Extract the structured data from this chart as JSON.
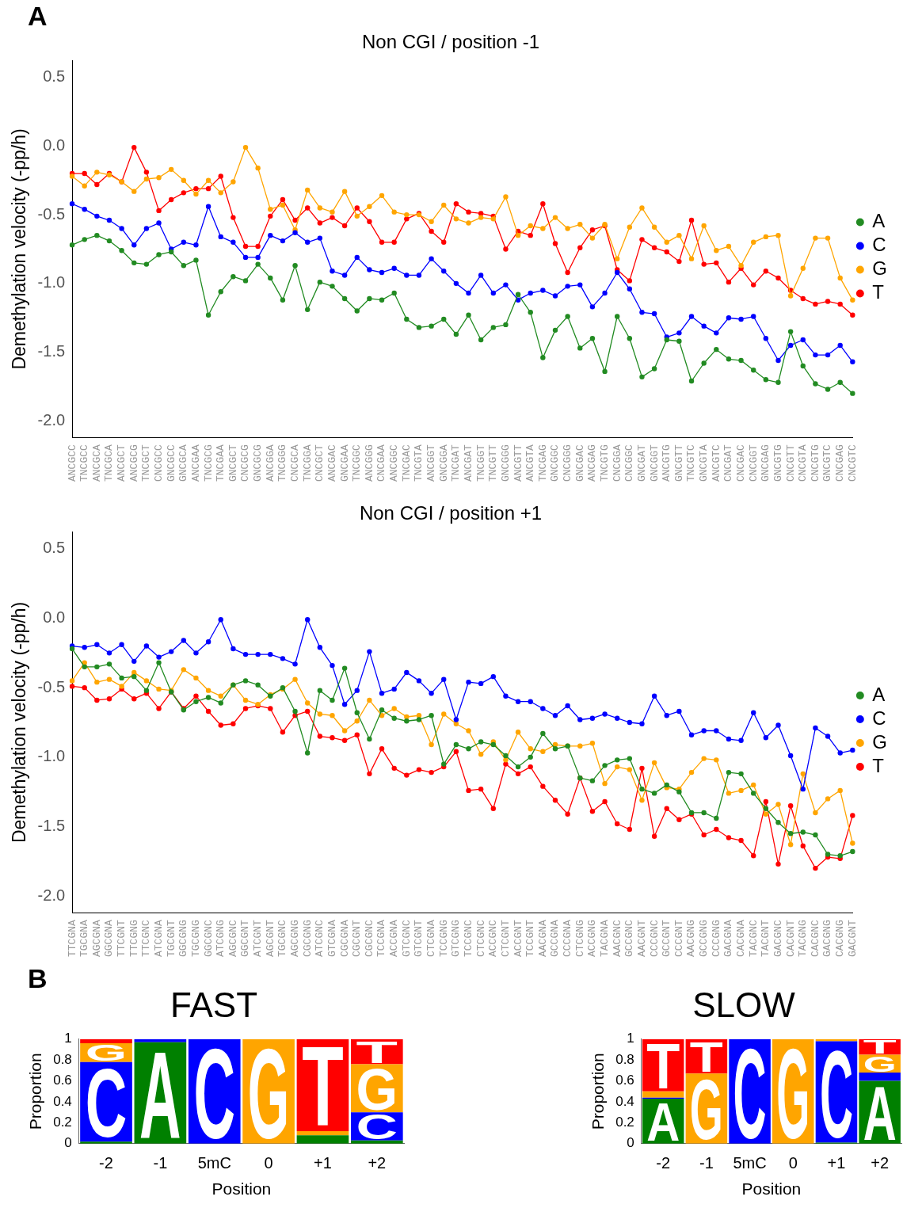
{
  "chart_data": [
    {
      "type": "line",
      "title": "Non CGI / position -1",
      "ylabel": "Demethylation velocity (-pp/h)",
      "annotations": [
        "A"
      ],
      "categories": [
        "ANCGCC",
        "TNCGCC",
        "ANCGCA",
        "TNCGCA",
        "ANCGCT",
        "ANCGCG",
        "TNCGCT",
        "CNCGCC",
        "GNCGCC",
        "GNCGCA",
        "ANCGAA",
        "TNCGCG",
        "TNCGAA",
        "GNCGCT",
        "CNCGCG",
        "GNCGCG",
        "ANCGGA",
        "TNCGGG",
        "CNCGCA",
        "TNCGGA",
        "CNCGCT",
        "ANCGAC",
        "GNCGAA",
        "TNCGGC",
        "ANCGGG",
        "CNCGAA",
        "ANCGGC",
        "TNCGAC",
        "TNCGTA",
        "ANCGGT",
        "GNCGGA",
        "TNCGAT",
        "ANCGAT",
        "TNCGGT",
        "TNCGTT",
        "GNCGGG",
        "ANCGTT",
        "ANCGTA",
        "TNCGAG",
        "GNCGGC",
        "CNCGGG",
        "GNCGAC",
        "ANCGAG",
        "TNCGTG",
        "CNCGGA",
        "CNCGGC",
        "GNCGAT",
        "GNCGGT",
        "ANCGTG",
        "GNCGTT",
        "TNCGTC",
        "GNCGTA",
        "ANCGTC",
        "CNCGAT",
        "CNCGAC",
        "CNCGGT",
        "GNCGAG",
        "GNCGTG",
        "CNCGTT",
        "CNCGTA",
        "CNCGTG",
        "GNCGTC",
        "CNCGAG",
        "CNCGTC"
      ],
      "series": [
        {
          "name": "A",
          "color": "#228b22",
          "values": [
            -0.72,
            -0.68,
            -0.65,
            -0.69,
            -0.76,
            -0.85,
            -0.86,
            -0.79,
            -0.77,
            -0.87,
            -0.83,
            -1.23,
            -1.06,
            -0.95,
            -0.98,
            -0.86,
            -0.96,
            -1.12,
            -0.87,
            -1.19,
            -0.99,
            -1.02,
            -1.11,
            -1.2,
            -1.11,
            -1.12,
            -1.07,
            -1.26,
            -1.32,
            -1.31,
            -1.26,
            -1.37,
            -1.23,
            -1.41,
            -1.32,
            -1.3,
            -1.08,
            -1.21,
            -1.54,
            -1.34,
            -1.24,
            -1.47,
            -1.4,
            -1.64,
            -1.24,
            -1.4,
            -1.68,
            -1.62,
            -1.41,
            -1.42,
            -1.71,
            -1.58,
            -1.48,
            -1.55,
            -1.56,
            -1.63,
            -1.7,
            -1.72,
            -1.35,
            -1.6,
            -1.73,
            -1.77,
            -1.72,
            -1.8
          ]
        },
        {
          "name": "C",
          "color": "#0000ff",
          "values": [
            -0.42,
            -0.46,
            -0.51,
            -0.54,
            -0.6,
            -0.72,
            -0.6,
            -0.56,
            -0.75,
            -0.7,
            -0.72,
            -0.44,
            -0.66,
            -0.7,
            -0.81,
            -0.81,
            -0.65,
            -0.69,
            -0.63,
            -0.7,
            -0.67,
            -0.91,
            -0.94,
            -0.81,
            -0.9,
            -0.92,
            -0.89,
            -0.94,
            -0.94,
            -0.82,
            -0.91,
            -1.0,
            -1.07,
            -0.94,
            -1.07,
            -1.01,
            -1.12,
            -1.07,
            -1.05,
            -1.09,
            -1.02,
            -1.01,
            -1.17,
            -1.07,
            -0.92,
            -1.04,
            -1.21,
            -1.22,
            -1.39,
            -1.36,
            -1.24,
            -1.31,
            -1.36,
            -1.25,
            -1.26,
            -1.24,
            -1.4,
            -1.56,
            -1.45,
            -1.41,
            -1.52,
            -1.52,
            -1.45,
            -1.57
          ]
        },
        {
          "name": "G",
          "color": "#ffa500",
          "values": [
            -0.22,
            -0.29,
            -0.19,
            -0.21,
            -0.26,
            -0.33,
            -0.24,
            -0.23,
            -0.17,
            -0.25,
            -0.35,
            -0.25,
            -0.34,
            -0.26,
            -0.01,
            -0.16,
            -0.46,
            -0.43,
            -0.61,
            -0.32,
            -0.45,
            -0.48,
            -0.33,
            -0.51,
            -0.44,
            -0.36,
            -0.48,
            -0.5,
            -0.5,
            -0.55,
            -0.43,
            -0.53,
            -0.56,
            -0.52,
            -0.53,
            -0.37,
            -0.65,
            -0.58,
            -0.6,
            -0.52,
            -0.6,
            -0.57,
            -0.67,
            -0.57,
            -0.82,
            -0.59,
            -0.45,
            -0.59,
            -0.7,
            -0.65,
            -0.82,
            -0.58,
            -0.76,
            -0.73,
            -0.87,
            -0.7,
            -0.66,
            -0.65,
            -1.09,
            -0.89,
            -0.67,
            -0.67,
            -0.96,
            -1.12
          ]
        },
        {
          "name": "T",
          "color": "#ff0000",
          "values": [
            -0.2,
            -0.2,
            -0.28,
            -0.2,
            -0.26,
            -0.01,
            -0.19,
            -0.47,
            -0.39,
            -0.34,
            -0.31,
            -0.31,
            -0.22,
            -0.52,
            -0.73,
            -0.73,
            -0.51,
            -0.39,
            -0.54,
            -0.45,
            -0.56,
            -0.52,
            -0.58,
            -0.45,
            -0.55,
            -0.7,
            -0.7,
            -0.53,
            -0.49,
            -0.62,
            -0.7,
            -0.42,
            -0.48,
            -0.49,
            -0.51,
            -0.75,
            -0.62,
            -0.65,
            -0.42,
            -0.71,
            -0.92,
            -0.74,
            -0.61,
            -0.58,
            -0.9,
            -0.98,
            -0.68,
            -0.74,
            -0.77,
            -0.84,
            -0.54,
            -0.86,
            -0.85,
            -0.99,
            -0.89,
            -1.01,
            -0.91,
            -0.96,
            -1.05,
            -1.11,
            -1.15,
            -1.13,
            -1.15,
            -1.23
          ]
        }
      ],
      "ylim": [
        -2.12,
        0.62
      ],
      "yticks": [
        0.5,
        {
          "value": 0,
          "label": "0.0"
        },
        -0.5,
        {
          "value": -1,
          "label": "-1.0"
        },
        -1.5,
        {
          "value": -2,
          "label": "-2.0"
        }
      ],
      "grid": false,
      "legend": "right",
      "marker": "circle",
      "line_style": "solid"
    },
    {
      "type": "line",
      "title": "Non CGI / position +1",
      "ylabel": "Demethylation velocity (-pp/h)",
      "categories": [
        "TTCGNA",
        "TGCGNA",
        "AGCGNA",
        "GGCGNA",
        "TTCGNT",
        "TTCGNG",
        "TTCGNC",
        "ATCGNA",
        "TGCGNT",
        "GGCGNG",
        "TGCGNG",
        "GGCGNC",
        "ATCGNG",
        "AGCGNC",
        "GGCGNT",
        "ATCGNT",
        "AGCGNT",
        "TGCGNC",
        "AGCGNG",
        "CGCGNG",
        "ATCGNC",
        "GTCGNA",
        "CGCGNA",
        "CGCGNT",
        "CGCGNC",
        "TCCGNA",
        "ACCGNA",
        "GTCGNC",
        "GTCGNT",
        "CTCGNA",
        "TCCGNG",
        "GTCGNG",
        "TCCGNC",
        "CTCGNC",
        "ACCGNC",
        "CTCGNT",
        "ACCGNT",
        "TCCGNT",
        "AACGNA",
        "GCCGNA",
        "CCCGNA",
        "CTCGNG",
        "ACCGNG",
        "TACGNA",
        "AACGNC",
        "GCCGNC",
        "AACGNT",
        "CCCGNC",
        "GCCGNT",
        "CCCGNT",
        "AACGNG",
        "GCCGNG",
        "CCCGNG",
        "GACGNA",
        "CACGNA",
        "TACGNC",
        "TACGNT",
        "GACGNC",
        "CACGNT",
        "TACGNG",
        "CACGNC",
        "GACGNG",
        "CACGNG",
        "GACGNT"
      ],
      "series": [
        {
          "name": "A",
          "color": "#228b22",
          "values": [
            -0.22,
            -0.35,
            -0.35,
            -0.33,
            -0.43,
            -0.42,
            -0.52,
            -0.32,
            -0.53,
            -0.66,
            -0.6,
            -0.57,
            -0.61,
            -0.48,
            -0.45,
            -0.48,
            -0.56,
            -0.5,
            -0.67,
            -0.97,
            -0.52,
            -0.59,
            -0.36,
            -0.68,
            -0.87,
            -0.66,
            -0.72,
            -0.74,
            -0.73,
            -0.7,
            -1.05,
            -0.91,
            -0.94,
            -0.89,
            -0.91,
            -0.99,
            -1.07,
            -1.0,
            -0.83,
            -0.94,
            -0.92,
            -1.15,
            -1.17,
            -1.06,
            -1.02,
            -1.01,
            -1.23,
            -1.26,
            -1.2,
            -1.25,
            -1.4,
            -1.4,
            -1.44,
            -1.11,
            -1.12,
            -1.26,
            -1.37,
            -1.47,
            -1.55,
            -1.54,
            -1.56,
            -1.7,
            -1.71,
            -1.68
          ]
        },
        {
          "name": "C",
          "color": "#0000ff",
          "values": [
            -0.2,
            -0.21,
            -0.19,
            -0.25,
            -0.19,
            -0.31,
            -0.2,
            -0.28,
            -0.24,
            -0.16,
            -0.25,
            -0.17,
            -0.01,
            -0.22,
            -0.26,
            -0.26,
            -0.26,
            -0.29,
            -0.33,
            -0.01,
            -0.21,
            -0.34,
            -0.62,
            -0.52,
            -0.24,
            -0.54,
            -0.51,
            -0.39,
            -0.45,
            -0.54,
            -0.44,
            -0.73,
            -0.46,
            -0.47,
            -0.42,
            -0.56,
            -0.6,
            -0.6,
            -0.65,
            -0.7,
            -0.63,
            -0.73,
            -0.72,
            -0.69,
            -0.72,
            -0.75,
            -0.76,
            -0.56,
            -0.7,
            -0.67,
            -0.84,
            -0.81,
            -0.81,
            -0.87,
            -0.88,
            -0.68,
            -0.86,
            -0.77,
            -0.99,
            -1.23,
            -0.79,
            -0.85,
            -0.97,
            -0.95
          ]
        },
        {
          "name": "G",
          "color": "#ffa500",
          "values": [
            -0.45,
            -0.32,
            -0.46,
            -0.44,
            -0.49,
            -0.39,
            -0.45,
            -0.51,
            -0.52,
            -0.37,
            -0.43,
            -0.52,
            -0.56,
            -0.48,
            -0.59,
            -0.62,
            -0.55,
            -0.51,
            -0.44,
            -0.61,
            -0.69,
            -0.7,
            -0.81,
            -0.74,
            -0.59,
            -0.7,
            -0.65,
            -0.71,
            -0.7,
            -0.91,
            -0.69,
            -0.76,
            -0.81,
            -0.98,
            -0.89,
            -1.02,
            -0.82,
            -0.94,
            -0.96,
            -0.91,
            -0.92,
            -0.92,
            -0.9,
            -1.19,
            -1.07,
            -1.09,
            -1.31,
            -1.04,
            -1.22,
            -1.23,
            -1.11,
            -1.01,
            -1.02,
            -1.26,
            -1.24,
            -1.2,
            -1.41,
            -1.34,
            -1.63,
            -1.12,
            -1.4,
            -1.3,
            -1.24,
            -1.62
          ]
        },
        {
          "name": "T",
          "color": "#ff0000",
          "values": [
            -0.49,
            -0.5,
            -0.59,
            -0.58,
            -0.51,
            -0.58,
            -0.54,
            -0.65,
            -0.53,
            -0.65,
            -0.56,
            -0.67,
            -0.77,
            -0.76,
            -0.65,
            -0.63,
            -0.65,
            -0.82,
            -0.7,
            -0.67,
            -0.85,
            -0.86,
            -0.88,
            -0.84,
            -1.12,
            -0.94,
            -1.08,
            -1.13,
            -1.09,
            -1.11,
            -1.07,
            -0.96,
            -1.24,
            -1.23,
            -1.37,
            -1.05,
            -1.12,
            -1.07,
            -1.21,
            -1.31,
            -1.41,
            -1.15,
            -1.39,
            -1.32,
            -1.48,
            -1.52,
            -1.08,
            -1.57,
            -1.37,
            -1.45,
            -1.41,
            -1.56,
            -1.52,
            -1.58,
            -1.6,
            -1.71,
            -1.32,
            -1.77,
            -1.35,
            -1.64,
            -1.8,
            -1.72,
            -1.73,
            -1.42
          ]
        }
      ],
      "ylim": [
        -2.12,
        0.62
      ],
      "yticks": [
        0.5,
        {
          "value": 0,
          "label": "0.0"
        },
        -0.5,
        {
          "value": -1,
          "label": "-1.0"
        },
        -1.5,
        {
          "value": -2,
          "label": "-2.0"
        }
      ],
      "grid": false,
      "legend": "right",
      "marker": "circle",
      "line_style": "solid"
    },
    {
      "type": "bar",
      "title": "FAST",
      "xlabel": "Position",
      "ylabel": "Proportion",
      "annotations": [
        "B"
      ],
      "stacked": true,
      "categories": [
        "-2",
        "-1",
        "5mC",
        "0",
        "+1",
        "+2"
      ],
      "series": [
        {
          "name": "A",
          "color": "#008000",
          "values": [
            0.02,
            0.97,
            0,
            0,
            0.08,
            0.03
          ]
        },
        {
          "name": "C",
          "color": "#0000ff",
          "values": [
            0.76,
            0.03,
            1,
            0,
            0,
            0.27
          ]
        },
        {
          "name": "G",
          "color": "#ffa500",
          "values": [
            0.18,
            0,
            0,
            1,
            0.04,
            0.46
          ]
        },
        {
          "name": "T",
          "color": "#ff0000",
          "values": [
            0.04,
            0,
            0,
            0,
            0.88,
            0.24
          ]
        }
      ],
      "ylim": [
        0,
        1
      ],
      "yticks": [
        0,
        0.2,
        0.4,
        0.6,
        0.8,
        1
      ],
      "grid": false,
      "legend": false
    },
    {
      "type": "bar",
      "title": "SLOW",
      "xlabel": "Position",
      "ylabel": "Proportion",
      "stacked": true,
      "categories": [
        "-2",
        "-1",
        "5mC",
        "0",
        "+1",
        "+2"
      ],
      "series": [
        {
          "name": "A",
          "color": "#008000",
          "values": [
            0.43,
            0,
            0,
            0,
            0.01,
            0.6
          ]
        },
        {
          "name": "C",
          "color": "#0000ff",
          "values": [
            0.01,
            0,
            1,
            0,
            0.97,
            0.08
          ]
        },
        {
          "name": "G",
          "color": "#ffa500",
          "values": [
            0.06,
            0.67,
            0,
            1,
            0.02,
            0.17
          ]
        },
        {
          "name": "T",
          "color": "#ff0000",
          "values": [
            0.5,
            0.33,
            0,
            0,
            0,
            0.15
          ]
        }
      ],
      "ylim": [
        0,
        1
      ],
      "yticks": [
        0,
        0.2,
        0.4,
        0.6,
        0.8,
        1
      ],
      "grid": false,
      "legend": false
    }
  ]
}
